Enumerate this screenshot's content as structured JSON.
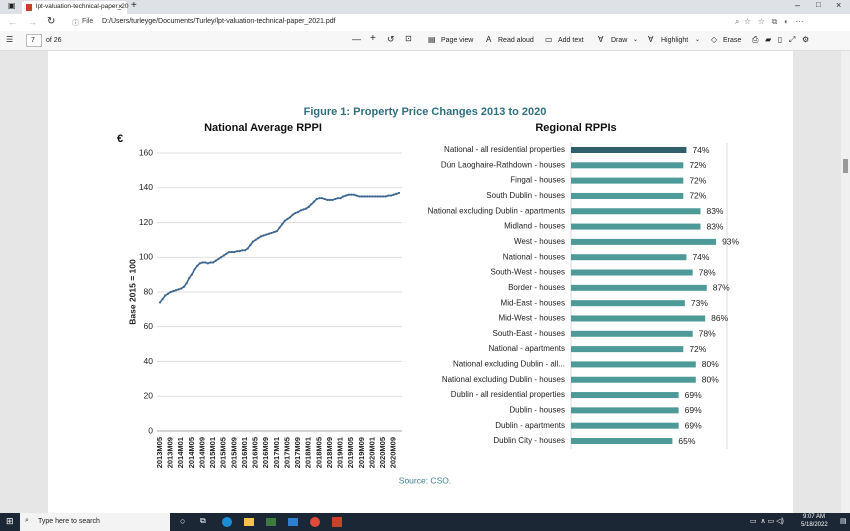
{
  "browser": {
    "tab_title": "lpt-valuation-technical-paper_20",
    "file_label": "File",
    "address": "D:/Users/turleyge/Documents/Turley/lpt-valuation-technical-paper_2021.pdf"
  },
  "toolbar": {
    "page": "7",
    "page_count": "of 26",
    "buttons": [
      "Page view",
      "Read aloud",
      "Add text",
      "Draw",
      "Highlight",
      "Erase"
    ]
  },
  "figure": {
    "title": "Figure 1: Property Price Changes 2013 to 2020",
    "source": "Source:  CSO."
  },
  "chart_data": [
    {
      "type": "line",
      "title": "National Average RPPI",
      "annotation": "€",
      "y_label": "Base 2015 = 100",
      "color": "#3d6690",
      "categories": [
        "2013M05",
        null,
        null,
        null,
        "2013M09",
        null,
        null,
        null,
        "2014M01",
        null,
        null,
        null,
        "2014M05",
        null,
        null,
        null,
        "2014M09",
        null,
        null,
        null,
        "2015M01",
        null,
        null,
        null,
        "2015M05",
        null,
        null,
        null,
        "2015M09",
        null,
        null,
        null,
        "2016M01",
        null,
        null,
        null,
        "2016M05",
        null,
        null,
        null,
        "2016M09",
        null,
        null,
        null,
        "2017M01",
        null,
        null,
        null,
        "2017M05",
        null,
        null,
        null,
        "2017M09",
        null,
        null,
        null,
        "2018M01",
        null,
        null,
        null,
        "2018M05",
        null,
        null,
        null,
        "2018M09",
        null,
        null,
        null,
        "2019M01",
        null,
        null,
        null,
        "2019M05",
        null,
        null,
        null,
        "2019M09",
        null,
        null,
        null,
        "2020M01",
        null,
        null,
        null,
        "2020M05",
        null,
        null,
        null,
        "2020M09",
        null,
        null
      ],
      "values": [
        74,
        76,
        78,
        79,
        80,
        80.5,
        81,
        81.5,
        82,
        83,
        85,
        88,
        90,
        93,
        95,
        96.5,
        97,
        97,
        96.5,
        97,
        97,
        98,
        99,
        100,
        101,
        102,
        103,
        103,
        103,
        103.5,
        103.5,
        104,
        104,
        105,
        107,
        109,
        110,
        111,
        112,
        112.5,
        113,
        113.5,
        114,
        114.5,
        115,
        117,
        119,
        121,
        122,
        123,
        124.5,
        125.5,
        126,
        127,
        127.5,
        128,
        129,
        130.5,
        132,
        133.5,
        134,
        134,
        133.5,
        133,
        133,
        133,
        133.5,
        134,
        134,
        135,
        135.5,
        136,
        136,
        136,
        135.5,
        135,
        135,
        135,
        135,
        135,
        135,
        135,
        135,
        135,
        135,
        135,
        135.5,
        135.5,
        136,
        136.5,
        137
      ],
      "ylim": [
        0,
        160
      ],
      "yticks": [
        0,
        20,
        40,
        60,
        80,
        100,
        120,
        140,
        160
      ],
      "grid": true
    },
    {
      "type": "hbar",
      "title": "Regional RPPIs",
      "categories": [
        "National - all residential properties",
        "Dún Laoghaire-Rathdown - houses",
        "Fingal - houses",
        "South Dublin - houses",
        "National excluding Dublin - apartments",
        "Midland - houses",
        "West - houses",
        "National - houses",
        "South-West - houses",
        "Border - houses",
        "Mid-East - houses",
        "Mid-West - houses",
        "South-East - houses",
        "National - apartments",
        "National excluding Dublin - all...",
        "National excluding Dublin - houses",
        "Dublin - all residential properties",
        "Dublin - houses",
        "Dublin - apartments",
        "Dublin City - houses"
      ],
      "values": [
        74,
        72,
        72,
        72,
        83,
        83,
        93,
        74,
        78,
        87,
        73,
        86,
        78,
        72,
        80,
        80,
        69,
        69,
        69,
        65
      ],
      "value_labels": [
        "74%",
        "72%",
        "72%",
        "72%",
        "83%",
        "83%",
        "93%",
        "74%",
        "78%",
        "87%",
        "73%",
        "86%",
        "78%",
        "72%",
        "80%",
        "80%",
        "69%",
        "69%",
        "69%",
        "65%"
      ],
      "colors": [
        "#2f5f6b",
        "#4e9a99",
        "#4e9a99",
        "#4e9a99",
        "#4e9a99",
        "#4e9a99",
        "#4e9a99",
        "#4e9a99",
        "#4e9a99",
        "#4e9a99",
        "#4e9a99",
        "#4e9a99",
        "#4e9a99",
        "#4e9a99",
        "#4e9a99",
        "#4e9a99",
        "#4e9a99",
        "#4e9a99",
        "#4e9a99",
        "#4e9a99"
      ],
      "xlim": [
        0,
        100
      ]
    }
  ],
  "taskbar": {
    "search": "Type here to search",
    "time": "9:07 AM",
    "date": "5/18/2022"
  }
}
